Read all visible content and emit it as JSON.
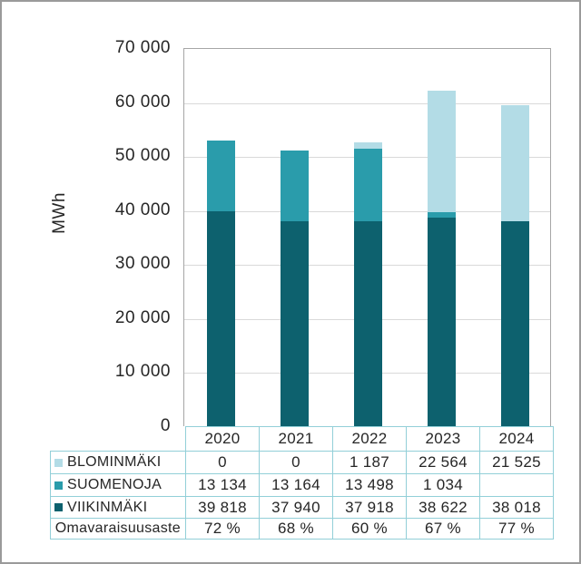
{
  "chart_data": {
    "type": "bar",
    "stacked": true,
    "ylabel": "MWh",
    "ylim": [
      0,
      70000
    ],
    "grid": true,
    "legend_position": "table-left",
    "categories": [
      "2020",
      "2021",
      "2022",
      "2023",
      "2024"
    ],
    "series": [
      {
        "name": "BLOMINMÄKI",
        "color": "#b3dce6",
        "values": [
          0,
          0,
          1187,
          22564,
          21525
        ]
      },
      {
        "name": "SUOMENOJA",
        "color": "#2a9cab",
        "values": [
          13134,
          13164,
          13498,
          1034,
          0
        ]
      },
      {
        "name": "VIIKINMÄKI",
        "color": "#0d616e",
        "values": [
          39818,
          37940,
          37918,
          38622,
          38018
        ]
      }
    ],
    "y_ticks": [
      "70 000",
      "60 000",
      "50 000",
      "40 000",
      "30 000",
      "20 000",
      "10 000",
      "0"
    ]
  },
  "table": {
    "border_color": "#92cfd8",
    "header": [
      "",
      "2020",
      "2021",
      "2022",
      "2023",
      "2024"
    ],
    "rows": [
      {
        "label": "BLOMINMÄKI",
        "swatch": "#b3dce6",
        "values": [
          "0",
          "0",
          "1 187",
          "22 564",
          "21 525"
        ]
      },
      {
        "label": "SUOMENOJA",
        "swatch": "#2a9cab",
        "values": [
          "13 134",
          "13 164",
          "13 498",
          "1 034",
          ""
        ]
      },
      {
        "label": "VIIKINMÄKI",
        "swatch": "#0d616e",
        "values": [
          "39 818",
          "37 940",
          "37 918",
          "38 622",
          "38 018"
        ]
      },
      {
        "label": "Omavaraisuusaste",
        "swatch": null,
        "values": [
          "72 %",
          "68 %",
          "60 %",
          "67 %",
          "77 %"
        ]
      }
    ]
  },
  "colors": {
    "gridline": "#d9d9d9",
    "plot_border": "#a6a6a6",
    "text": "#262626",
    "window_border": "#9a9a9a"
  }
}
